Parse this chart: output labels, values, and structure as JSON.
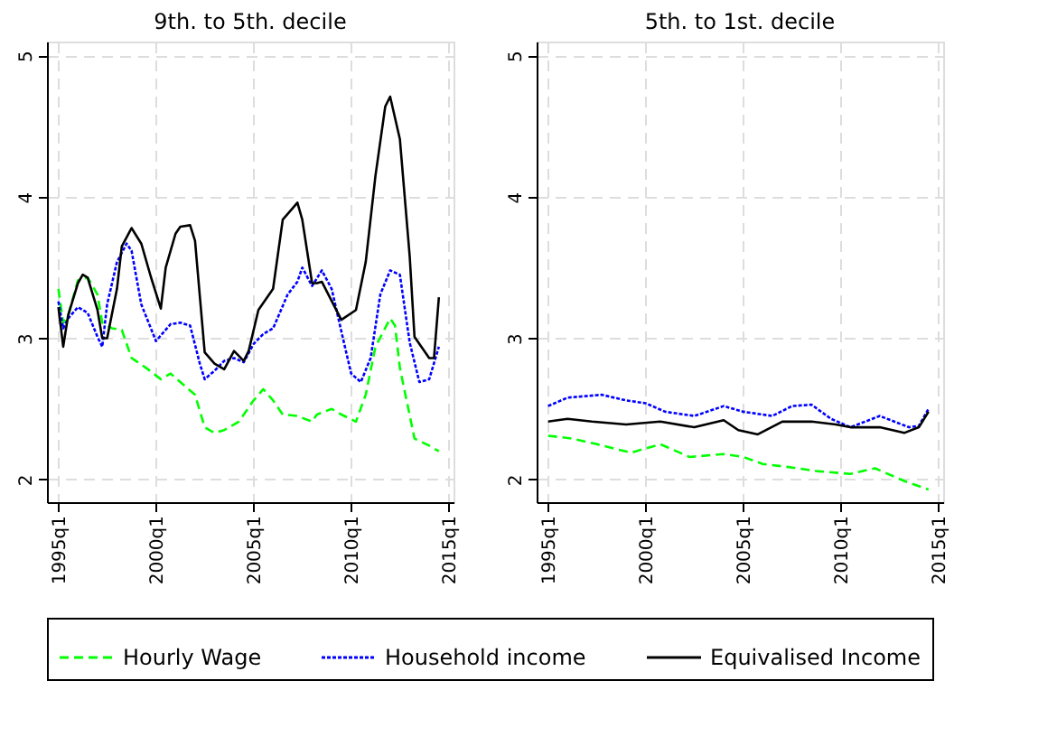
{
  "chart_data": [
    {
      "type": "line",
      "title": "9th. to 5th. decile",
      "xlim": [
        "1994-06",
        "2015-04"
      ],
      "ylim": [
        1.84,
        5.1
      ],
      "xticks": [
        {
          "value": "1995-01",
          "label": "1995q1"
        },
        {
          "value": "2000-01",
          "label": "2000q1"
        },
        {
          "value": "2005-01",
          "label": "2005q1"
        },
        {
          "value": "2010-01",
          "label": "2010q1"
        },
        {
          "value": "2015-01",
          "label": "2015q1"
        }
      ],
      "yticks": [
        2,
        3,
        4,
        5
      ],
      "grid": true,
      "legend": "bottom",
      "series": [
        {
          "name": "Hourly Wage",
          "color": "#00ff00",
          "line_style": "dashed",
          "x": [
            "1995-01",
            "1995-04",
            "1995-07",
            "1996-01",
            "1996-07",
            "1997-01",
            "1997-04",
            "1997-10",
            "1998-04",
            "1998-10",
            "1999-07",
            "2000-04",
            "2000-10",
            "2001-04",
            "2002-01",
            "2002-07",
            "2003-01",
            "2003-07",
            "2004-04",
            "2005-01",
            "2005-07",
            "2006-01",
            "2006-07",
            "2007-04",
            "2008-01",
            "2008-04",
            "2009-01",
            "2009-07",
            "2010-04",
            "2010-10",
            "2011-04",
            "2012-01",
            "2012-04",
            "2012-07",
            "2013-04",
            "2014-01",
            "2014-07"
          ],
          "values": [
            3.35,
            3.11,
            3.16,
            3.41,
            3.43,
            3.31,
            3.11,
            3.07,
            3.06,
            2.86,
            2.79,
            2.71,
            2.75,
            2.69,
            2.6,
            2.37,
            2.33,
            2.35,
            2.41,
            2.56,
            2.64,
            2.56,
            2.46,
            2.45,
            2.41,
            2.46,
            2.5,
            2.46,
            2.41,
            2.6,
            2.94,
            3.14,
            3.09,
            2.79,
            2.29,
            2.24,
            2.2
          ]
        },
        {
          "name": "Household income",
          "color": "#0000ff",
          "line_style": "dotted",
          "x": [
            "1995-01",
            "1995-04",
            "1995-07",
            "1996-01",
            "1996-07",
            "1997-01",
            "1997-04",
            "1997-07",
            "1998-01",
            "1998-07",
            "1998-10",
            "1999-04",
            "2000-01",
            "2000-10",
            "2001-04",
            "2001-10",
            "2002-04",
            "2002-07",
            "2003-01",
            "2003-07",
            "2004-01",
            "2004-07",
            "2005-01",
            "2005-07",
            "2006-01",
            "2006-10",
            "2007-04",
            "2007-07",
            "2008-01",
            "2008-07",
            "2009-01",
            "2009-07",
            "2010-01",
            "2010-07",
            "2011-01",
            "2011-07",
            "2012-01",
            "2012-07",
            "2013-01",
            "2013-07",
            "2014-01",
            "2014-07"
          ],
          "values": [
            3.26,
            3.07,
            3.14,
            3.22,
            3.18,
            3.01,
            2.94,
            3.24,
            3.54,
            3.67,
            3.62,
            3.24,
            2.98,
            3.1,
            3.11,
            3.09,
            2.82,
            2.71,
            2.77,
            2.84,
            2.86,
            2.83,
            2.96,
            3.03,
            3.07,
            3.31,
            3.4,
            3.5,
            3.37,
            3.48,
            3.35,
            3.05,
            2.75,
            2.69,
            2.86,
            3.31,
            3.48,
            3.45,
            2.97,
            2.69,
            2.71,
            2.94
          ]
        },
        {
          "name": "Equivalised Income",
          "color": "#000000",
          "line_style": "solid",
          "x": [
            "1995-01",
            "1995-04",
            "1995-07",
            "1996-01",
            "1996-04",
            "1996-07",
            "1997-01",
            "1997-04",
            "1997-07",
            "1998-01",
            "1998-04",
            "1998-10",
            "1999-04",
            "1999-10",
            "2000-04",
            "2000-07",
            "2001-01",
            "2001-04",
            "2001-10",
            "2002-01",
            "2002-07",
            "2003-01",
            "2003-07",
            "2004-01",
            "2004-07",
            "2004-10",
            "2005-04",
            "2006-01",
            "2006-07",
            "2007-01",
            "2007-04",
            "2007-07",
            "2008-01",
            "2008-04",
            "2008-07",
            "2009-07",
            "2010-04",
            "2010-10",
            "2011-04",
            "2011-10",
            "2012-01",
            "2012-07",
            "2013-01",
            "2013-04",
            "2014-01",
            "2014-04",
            "2014-07"
          ],
          "values": [
            3.22,
            2.94,
            3.16,
            3.39,
            3.45,
            3.43,
            3.2,
            3.0,
            3.0,
            3.35,
            3.65,
            3.78,
            3.67,
            3.43,
            3.21,
            3.5,
            3.74,
            3.79,
            3.8,
            3.69,
            2.9,
            2.82,
            2.78,
            2.91,
            2.84,
            2.91,
            3.2,
            3.35,
            3.84,
            3.92,
            3.96,
            3.84,
            3.39,
            3.39,
            3.4,
            3.13,
            3.2,
            3.54,
            4.15,
            4.64,
            4.71,
            4.41,
            3.58,
            3.01,
            2.86,
            2.86,
            3.29
          ]
        }
      ]
    },
    {
      "type": "line",
      "title": "5th. to 1st. decile",
      "xlim": [
        "1994-06",
        "2015-04"
      ],
      "ylim": [
        1.84,
        5.1
      ],
      "xticks": [
        {
          "value": "1995-01",
          "label": "1995q1"
        },
        {
          "value": "2000-01",
          "label": "2000q1"
        },
        {
          "value": "2005-01",
          "label": "2005q1"
        },
        {
          "value": "2010-01",
          "label": "2010q1"
        },
        {
          "value": "2015-01",
          "label": "2015q1"
        }
      ],
      "yticks": [
        2,
        3,
        4,
        5
      ],
      "grid": true,
      "series": [
        {
          "name": "Hourly Wage",
          "color": "#00ff00",
          "line_style": "dashed",
          "x": [
            "1995-01",
            "1996-04",
            "1997-07",
            "1999-04",
            "2000-10",
            "2002-04",
            "2004-01",
            "2005-01",
            "2006-01",
            "2007-04",
            "2008-10",
            "2010-07",
            "2011-10",
            "2013-04",
            "2014-07"
          ],
          "values": [
            2.31,
            2.29,
            2.25,
            2.19,
            2.25,
            2.16,
            2.18,
            2.16,
            2.11,
            2.09,
            2.06,
            2.04,
            2.08,
            1.99,
            1.93
          ]
        },
        {
          "name": "Household income",
          "color": "#0000ff",
          "line_style": "dotted",
          "x": [
            "1995-01",
            "1996-01",
            "1997-10",
            "1999-01",
            "2000-01",
            "2001-01",
            "2002-07",
            "2004-01",
            "2005-01",
            "2006-07",
            "2007-07",
            "2008-07",
            "2009-07",
            "2010-07",
            "2012-01",
            "2013-07",
            "2014-01",
            "2014-07"
          ],
          "values": [
            2.52,
            2.58,
            2.6,
            2.56,
            2.54,
            2.48,
            2.45,
            2.52,
            2.48,
            2.45,
            2.52,
            2.53,
            2.43,
            2.37,
            2.45,
            2.37,
            2.38,
            2.5
          ]
        },
        {
          "name": "Equivalised Income",
          "color": "#000000",
          "line_style": "solid",
          "x": [
            "1995-01",
            "1996-01",
            "1997-04",
            "1999-01",
            "2000-10",
            "2002-07",
            "2004-01",
            "2004-10",
            "2005-10",
            "2007-01",
            "2008-07",
            "2009-10",
            "2010-07",
            "2012-01",
            "2013-04",
            "2014-01",
            "2014-07"
          ],
          "values": [
            2.41,
            2.43,
            2.41,
            2.39,
            2.41,
            2.37,
            2.42,
            2.35,
            2.32,
            2.41,
            2.41,
            2.39,
            2.37,
            2.37,
            2.33,
            2.37,
            2.48
          ]
        }
      ]
    }
  ]
}
